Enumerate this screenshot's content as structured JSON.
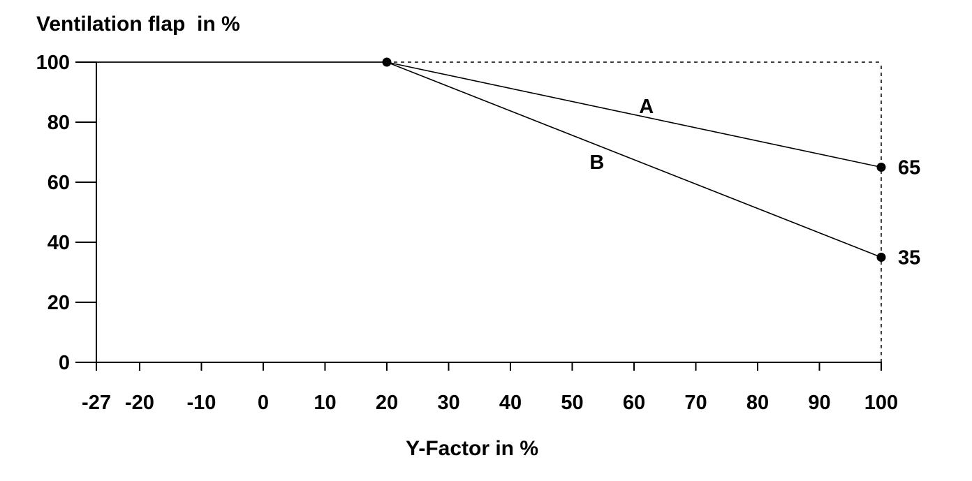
{
  "chart_data": {
    "type": "line",
    "ylabel": "Ventilation flap  in %",
    "xlabel": "Y-Factor in %",
    "x_ticks": [
      "-27",
      "-20",
      "-10",
      "0",
      "10",
      "20",
      "30",
      "40",
      "50",
      "60",
      "70",
      "80",
      "90",
      "100"
    ],
    "y_ticks": [
      "0",
      "20",
      "40",
      "60",
      "80",
      "100"
    ],
    "xlim": [
      -27,
      100
    ],
    "ylim": [
      0,
      100
    ],
    "grid": false,
    "series": [
      {
        "name": "A",
        "x": [
          -27,
          20,
          100
        ],
        "y": [
          100,
          100,
          65
        ]
      },
      {
        "name": "B",
        "x": [
          -27,
          20,
          100
        ],
        "y": [
          100,
          100,
          35
        ]
      }
    ],
    "reference_lines": [
      {
        "type": "horizontal",
        "y": 100,
        "x_from": 20,
        "x_to": 100,
        "style": "dashed"
      },
      {
        "type": "vertical",
        "x": 100,
        "y_from": 0,
        "y_to": 100,
        "style": "dashed"
      }
    ],
    "markers": [
      {
        "x": 20,
        "y": 100
      },
      {
        "x": 100,
        "y": 65
      },
      {
        "x": 100,
        "y": 35
      }
    ],
    "annotations": [
      {
        "text": "65",
        "x": 100,
        "y": 65
      },
      {
        "text": "35",
        "x": 100,
        "y": 35
      }
    ],
    "colors": {
      "line": "#000000",
      "background": "#ffffff"
    }
  }
}
